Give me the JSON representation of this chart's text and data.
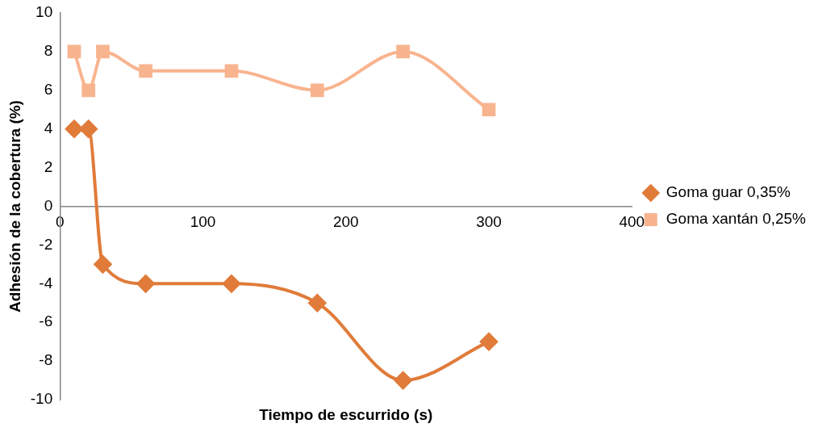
{
  "chart_data": {
    "type": "line",
    "xlabel": "Tiempo de escurrido (s)",
    "ylabel": "Adhesión de la cobertura (%)",
    "x": [
      10,
      20,
      30,
      60,
      120,
      180,
      240,
      300
    ],
    "series": [
      {
        "name": "Goma guar 0,35%",
        "color": "#e07b39",
        "marker": "diamond",
        "values": [
          4,
          4,
          -3,
          -4,
          -4,
          -5,
          -9,
          -7
        ]
      },
      {
        "name": "Goma xantán 0,25%",
        "color": "#f8b48f",
        "marker": "square",
        "values": [
          8,
          6,
          8,
          7,
          7,
          6,
          8,
          5
        ]
      }
    ],
    "xlim": [
      0,
      400
    ],
    "xticks": [
      0,
      100,
      200,
      300,
      400
    ],
    "ylim": [
      -10,
      10
    ],
    "yticks": [
      -10,
      -8,
      -6,
      -4,
      -2,
      0,
      2,
      4,
      6,
      8,
      10
    ],
    "grid": false,
    "legend": "right"
  }
}
